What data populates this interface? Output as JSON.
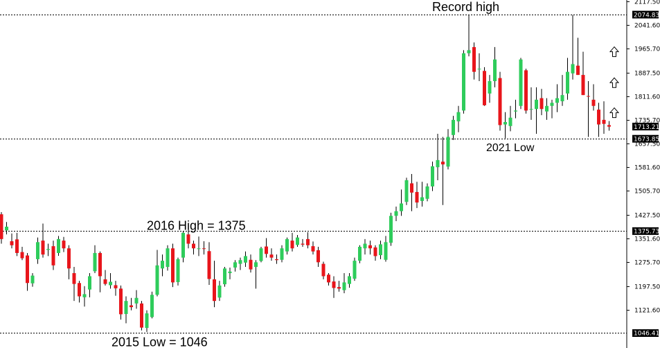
{
  "chart_data": {
    "type": "candlestick",
    "y_axis": {
      "ticks": [
        2117.5,
        2041.6,
        1965.7,
        1887.5,
        1811.6,
        1735.7,
        1657.5,
        1581.6,
        1505.7,
        1427.5,
        1351.6,
        1275.7,
        1197.5,
        1121.6
      ],
      "ylim": [
        1034,
        2122
      ],
      "position": "right"
    },
    "price_tags": [
      {
        "value": 2074.83,
        "label": "2074.83"
      },
      {
        "value": 1713.21,
        "label": "1713.21"
      },
      {
        "value": 1673.85,
        "label": "1673.85"
      },
      {
        "value": 1375.73,
        "label": "1375.73"
      },
      {
        "value": 1046.41,
        "label": "1046.41"
      }
    ],
    "levels": [
      2074.83,
      1673.85,
      1375.73,
      1046.41
    ],
    "annotations": [
      {
        "text": "Record high",
        "value": 2074.83
      },
      {
        "text": "2021 Low",
        "value": 1673.85
      },
      {
        "text": "2016 High = 1375",
        "value": 1375.73
      },
      {
        "text": "2015 Low = 1046",
        "value": 1046.41
      }
    ],
    "arrows": [
      {
        "icon": "up-arrow-icon",
        "value": 1955
      },
      {
        "icon": "up-arrow-icon",
        "value": 1855
      },
      {
        "icon": "up-arrow-icon",
        "value": 1758
      }
    ],
    "colors": {
      "up": "#2ecc5b",
      "down": "#e8151b",
      "wick": "#000000",
      "tag_bg": "#000000",
      "level": "#000000"
    },
    "candles": [
      [
        1430,
        1437,
        1335,
        1350
      ],
      [
        1378,
        1405,
        1365,
        1390
      ],
      [
        1343,
        1368,
        1320,
        1330
      ],
      [
        1349,
        1370,
        1295,
        1305
      ],
      [
        1308,
        1325,
        1282,
        1288
      ],
      [
        1297,
        1305,
        1183,
        1208
      ],
      [
        1207,
        1240,
        1196,
        1232
      ],
      [
        1285,
        1355,
        1270,
        1340
      ],
      [
        1345,
        1400,
        1290,
        1300
      ],
      [
        1315,
        1335,
        1295,
        1318
      ],
      [
        1327,
        1345,
        1250,
        1265
      ],
      [
        1305,
        1360,
        1296,
        1350
      ],
      [
        1345,
        1357,
        1308,
        1320
      ],
      [
        1320,
        1330,
        1220,
        1255
      ],
      [
        1240,
        1260,
        1150,
        1205
      ],
      [
        1208,
        1215,
        1145,
        1165
      ],
      [
        1162,
        1198,
        1132,
        1172
      ],
      [
        1187,
        1240,
        1162,
        1230
      ],
      [
        1246,
        1330,
        1240,
        1305
      ],
      [
        1305,
        1310,
        1178,
        1230
      ],
      [
        1220,
        1250,
        1200,
        1205
      ],
      [
        1201,
        1240,
        1190,
        1212
      ],
      [
        1201,
        1215,
        1167,
        1191
      ],
      [
        1190,
        1200,
        1090,
        1107
      ],
      [
        1108,
        1165,
        1078,
        1150
      ],
      [
        1136,
        1160,
        1120,
        1130
      ],
      [
        1142,
        1185,
        1125,
        1160
      ],
      [
        1142,
        1150,
        1055,
        1064
      ],
      [
        1063,
        1120,
        1050,
        1110
      ],
      [
        1098,
        1180,
        1094,
        1170
      ],
      [
        1170,
        1315,
        1165,
        1265
      ],
      [
        1255,
        1300,
        1230,
        1280
      ],
      [
        1260,
        1330,
        1248,
        1320
      ],
      [
        1320,
        1335,
        1195,
        1210
      ],
      [
        1211,
        1290,
        1200,
        1285
      ],
      [
        1290,
        1375,
        1275,
        1370
      ],
      [
        1365,
        1380,
        1320,
        1335
      ],
      [
        1335,
        1345,
        1300,
        1320
      ],
      [
        1318,
        1358,
        1295,
        1320
      ],
      [
        1320,
        1343,
        1300,
        1318
      ],
      [
        1311,
        1340,
        1202,
        1221
      ],
      [
        1220,
        1280,
        1130,
        1150
      ],
      [
        1161,
        1215,
        1150,
        1200
      ],
      [
        1204,
        1260,
        1196,
        1255
      ],
      [
        1240,
        1258,
        1220,
        1245
      ],
      [
        1258,
        1282,
        1245,
        1275
      ],
      [
        1270,
        1290,
        1250,
        1282
      ],
      [
        1274,
        1310,
        1260,
        1295
      ],
      [
        1283,
        1300,
        1242,
        1252
      ],
      [
        1260,
        1282,
        1190,
        1275
      ],
      [
        1279,
        1325,
        1275,
        1320
      ],
      [
        1326,
        1353,
        1290,
        1302
      ],
      [
        1300,
        1320,
        1280,
        1290
      ],
      [
        1285,
        1300,
        1270,
        1282
      ],
      [
        1283,
        1330,
        1275,
        1320
      ],
      [
        1310,
        1355,
        1300,
        1350
      ],
      [
        1345,
        1370,
        1310,
        1320
      ],
      [
        1331,
        1363,
        1325,
        1355
      ],
      [
        1335,
        1350,
        1325,
        1332
      ],
      [
        1350,
        1372,
        1320,
        1330
      ],
      [
        1327,
        1342,
        1300,
        1310
      ],
      [
        1314,
        1325,
        1260,
        1275
      ],
      [
        1270,
        1277,
        1220,
        1230
      ],
      [
        1235,
        1240,
        1200,
        1210
      ],
      [
        1213,
        1230,
        1160,
        1192
      ],
      [
        1195,
        1215,
        1180,
        1190
      ],
      [
        1185,
        1240,
        1175,
        1210
      ],
      [
        1205,
        1240,
        1193,
        1230
      ],
      [
        1222,
        1290,
        1215,
        1280
      ],
      [
        1280,
        1330,
        1272,
        1325
      ],
      [
        1320,
        1350,
        1300,
        1335
      ],
      [
        1330,
        1345,
        1300,
        1320
      ],
      [
        1323,
        1330,
        1280,
        1295
      ],
      [
        1298,
        1345,
        1285,
        1333
      ],
      [
        1283,
        1360,
        1277,
        1340
      ],
      [
        1338,
        1435,
        1328,
        1425
      ],
      [
        1425,
        1455,
        1408,
        1440
      ],
      [
        1440,
        1510,
        1425,
        1465
      ],
      [
        1470,
        1548,
        1460,
        1540
      ],
      [
        1530,
        1560,
        1440,
        1500
      ],
      [
        1502,
        1535,
        1450,
        1468
      ],
      [
        1473,
        1535,
        1455,
        1485
      ],
      [
        1480,
        1530,
        1472,
        1520
      ],
      [
        1520,
        1600,
        1505,
        1585
      ],
      [
        1582,
        1690,
        1540,
        1605
      ],
      [
        1600,
        1680,
        1460,
        1591
      ],
      [
        1584,
        1705,
        1575,
        1680
      ],
      [
        1686,
        1748,
        1670,
        1735
      ],
      [
        1730,
        1780,
        1695,
        1760
      ],
      [
        1765,
        1960,
        1755,
        1950
      ],
      [
        1950,
        2074,
        1940,
        1960
      ],
      [
        1970,
        1985,
        1865,
        1890
      ],
      [
        1898,
        1950,
        1860,
        1900
      ],
      [
        1893,
        1905,
        1780,
        1782
      ],
      [
        1820,
        1880,
        1790,
        1860
      ],
      [
        1860,
        1970,
        1840,
        1930
      ],
      [
        1870,
        1890,
        1700,
        1718
      ],
      [
        1720,
        1760,
        1675,
        1728
      ],
      [
        1715,
        1780,
        1698,
        1742
      ],
      [
        1762,
        1800,
        1740,
        1765
      ],
      [
        1780,
        1935,
        1770,
        1930
      ],
      [
        1895,
        1900,
        1755,
        1765
      ],
      [
        1770,
        1840,
        1735,
        1770
      ],
      [
        1770,
        1840,
        1690,
        1800
      ],
      [
        1805,
        1835,
        1750,
        1770
      ],
      [
        1762,
        1805,
        1735,
        1780
      ],
      [
        1780,
        1800,
        1740,
        1790
      ],
      [
        1790,
        1850,
        1760,
        1805
      ],
      [
        1795,
        1880,
        1780,
        1815
      ],
      [
        1820,
        1935,
        1800,
        1890
      ],
      [
        1885,
        2074,
        1865,
        1915
      ],
      [
        1910,
        2000,
        1880,
        1880
      ],
      [
        1880,
        1955,
        1815,
        1815
      ],
      [
        1812,
        1860,
        1680,
        1810
      ],
      [
        1800,
        1850,
        1765,
        1780
      ],
      [
        1768,
        1790,
        1680,
        1720
      ],
      [
        1735,
        1795,
        1690,
        1722
      ],
      [
        1718,
        1731,
        1700,
        1713
      ]
    ]
  }
}
